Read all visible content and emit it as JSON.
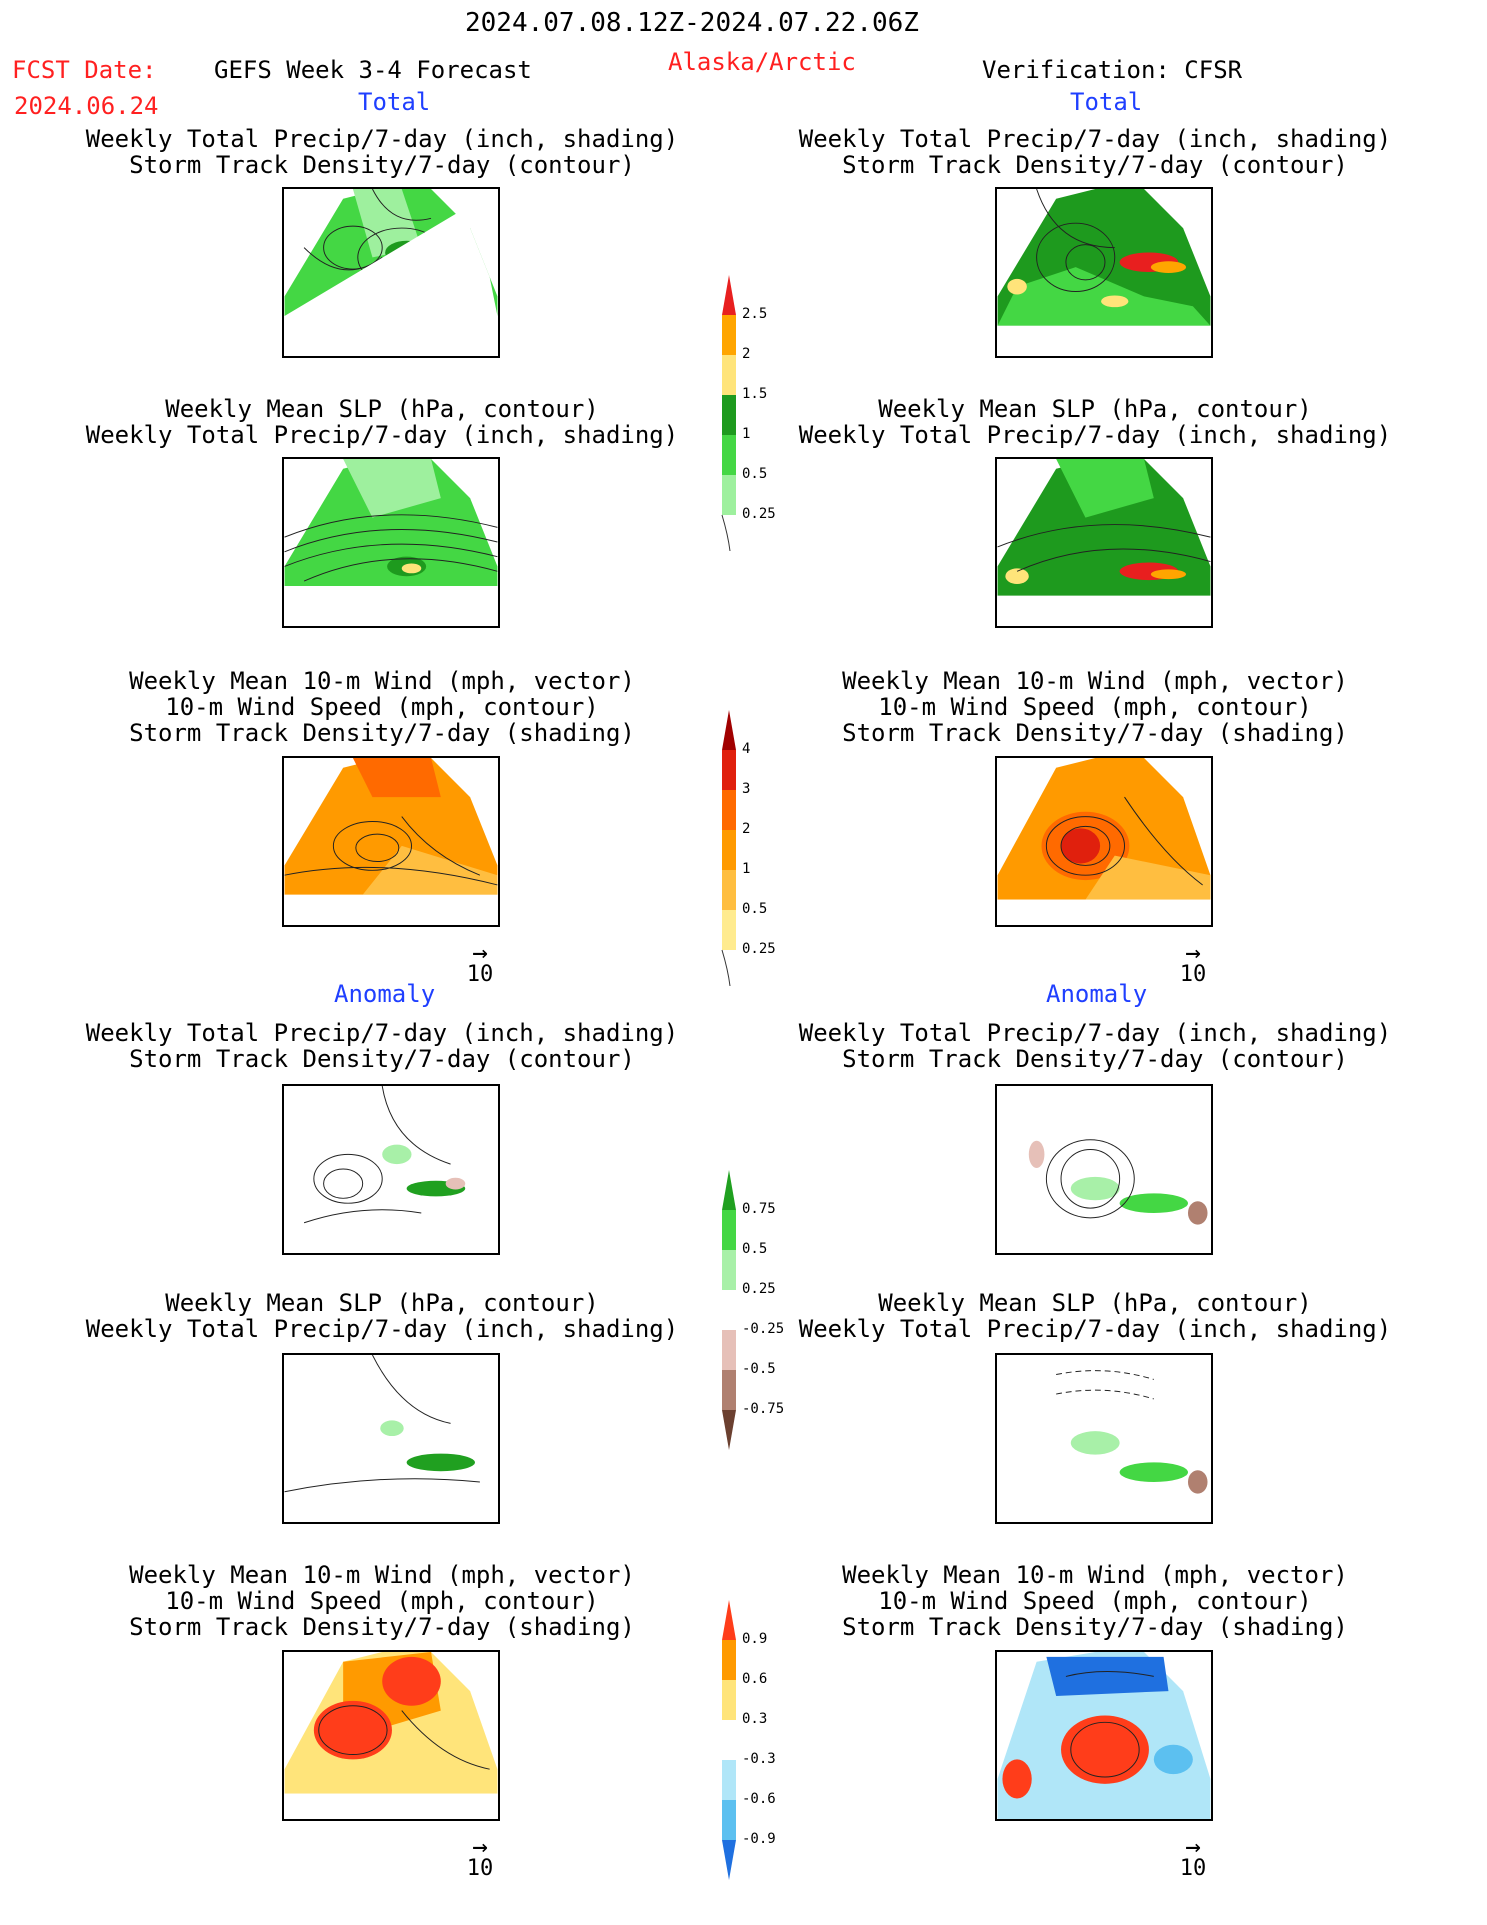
{
  "header": {
    "date_range": "2024.07.08.12Z-2024.07.22.06Z",
    "fcst_label": "FCST Date:",
    "fcst_date": "2024.06.24",
    "model": "GEFS Week 3-4 Forecast",
    "region": "Alaska/Arctic",
    "verification": "Verification: CFSR"
  },
  "sections": {
    "total": "Total",
    "anomaly": "Anomaly"
  },
  "titles": {
    "precip_std": "Weekly Total Precip/7-day (inch, shading)\nStorm Track Density/7-day (contour)",
    "slp_precip": "Weekly Mean SLP (hPa, contour)\nWeekly Total Precip/7-day (inch, shading)",
    "wind_std": "Weekly Mean 10-m Wind (mph, vector)\n10-m Wind Speed (mph, contour)\nStorm Track Density/7-day (shading)"
  },
  "colorbars": {
    "precip_total": {
      "labels": [
        "2.5",
        "2",
        "1.5",
        "1",
        "0.5",
        "0.25"
      ],
      "colors": [
        "#e81f1f",
        "#ffa500",
        "#ffe47a",
        "#1e9a1e",
        "#44d744",
        "#9ef09e"
      ]
    },
    "std_total": {
      "labels": [
        "4",
        "3",
        "2",
        "1",
        "0.5",
        "0.25"
      ],
      "colors": [
        "#a10000",
        "#e0200d",
        "#ff6a00",
        "#ff9a00",
        "#ffbe40",
        "#ffeb8f"
      ]
    },
    "precip_anom": {
      "labels": [
        "0.75",
        "0.5",
        "0.25",
        "-0.25",
        "-0.5",
        "-0.75"
      ],
      "colors": [
        "#20a020",
        "#44d744",
        "#a8f0a8",
        "#ffffff",
        "#e6c0b8",
        "#b08070",
        "#6b4030"
      ]
    },
    "std_anom": {
      "labels": [
        "0.9",
        "0.6",
        "0.3",
        "-0.3",
        "-0.6",
        "-0.9"
      ],
      "colors": [
        "#ff3d1a",
        "#ff9a00",
        "#ffe47a",
        "#ffffff",
        "#b0e6f8",
        "#5cc0f0",
        "#1f70e0"
      ]
    }
  },
  "vector_ref": "10"
}
